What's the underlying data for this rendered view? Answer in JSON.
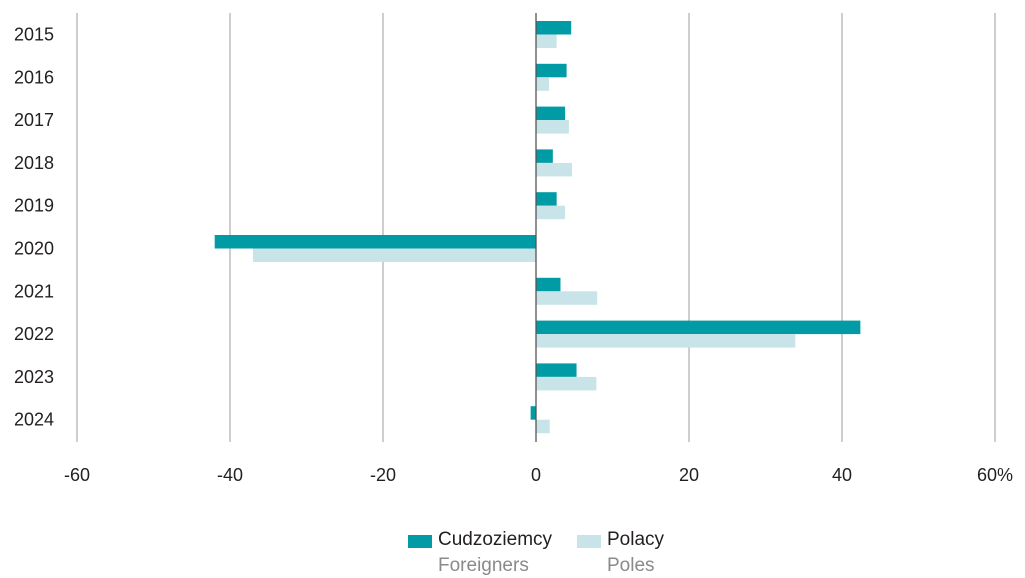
{
  "chart_data": {
    "type": "bar",
    "orientation": "horizontal",
    "categories": [
      "2015",
      "2016",
      "2017",
      "2018",
      "2019",
      "2020",
      "2021",
      "2022",
      "2023",
      "2024"
    ],
    "series": [
      {
        "name": "Cudzoziemcy",
        "name_en": "Foreigners",
        "color": "#009ba4",
        "values": [
          4.6,
          4.0,
          3.8,
          2.2,
          2.7,
          -42.0,
          3.2,
          42.4,
          5.3,
          -0.7
        ]
      },
      {
        "name": "Polacy",
        "name_en": "Poles",
        "color": "#c8e4e8",
        "values": [
          2.7,
          1.7,
          4.3,
          4.7,
          3.8,
          -37.0,
          8.0,
          33.9,
          7.9,
          1.8
        ]
      }
    ],
    "xlim": [
      -60,
      60
    ],
    "xticks": [
      -60,
      -40,
      -20,
      0,
      20,
      40,
      60
    ],
    "xtick_labels": [
      "-60",
      "-40",
      "-20",
      "0",
      "20",
      "40",
      "60%"
    ],
    "grid": true,
    "legend_position": "bottom-center"
  }
}
